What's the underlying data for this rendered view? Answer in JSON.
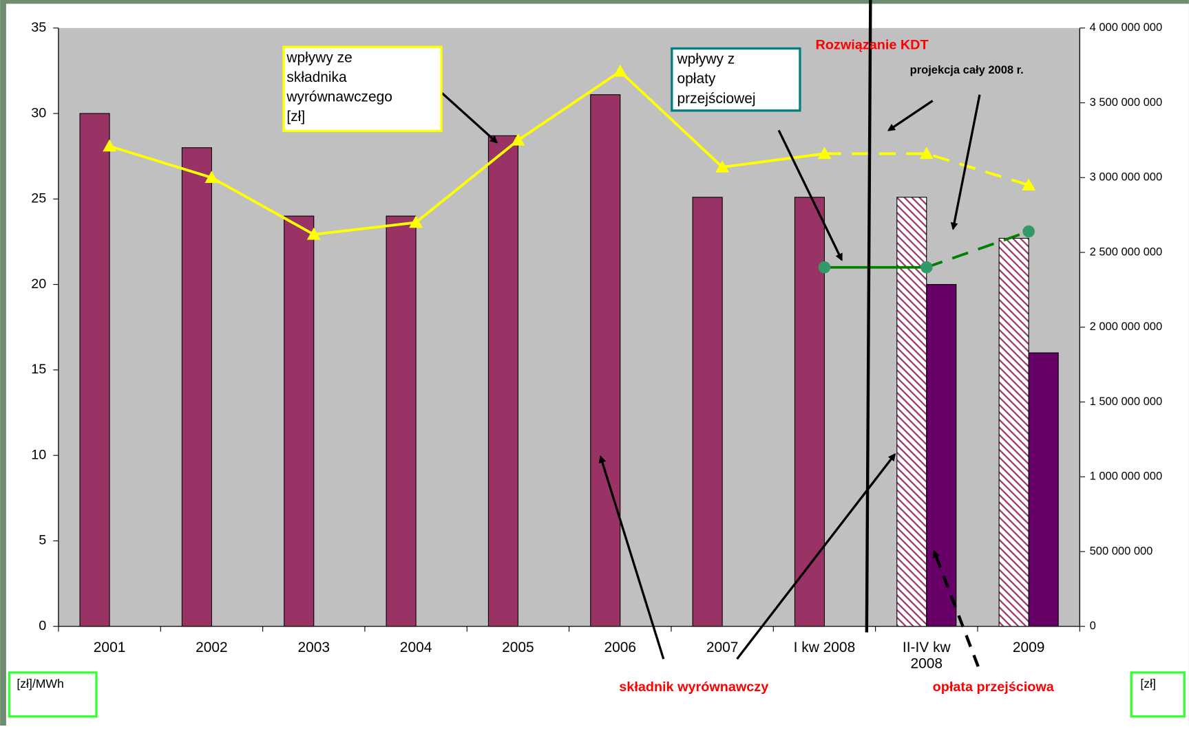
{
  "chart_data": {
    "type": "bar",
    "categories": [
      "2001",
      "2002",
      "2003",
      "2004",
      "2005",
      "2006",
      "2007",
      "I kw 2008",
      "II-IV kw 2008",
      "2009"
    ],
    "series": [
      {
        "name": "składnik wyrównawczy",
        "color": "#993366",
        "kind": "bar",
        "axis": "y",
        "values": [
          30,
          28,
          24,
          24,
          28.7,
          31.1,
          25.1,
          25.1,
          25.1,
          22.7
        ],
        "hatched": [
          false,
          false,
          false,
          false,
          false,
          false,
          false,
          false,
          true,
          true
        ]
      },
      {
        "name": "opłata przejściowa",
        "color": "#660066",
        "kind": "bar",
        "axis": "y",
        "values": [
          null,
          null,
          null,
          null,
          null,
          null,
          null,
          null,
          20,
          16
        ]
      },
      {
        "name": "wpływy ze składnika wyrównawczego [zł]",
        "color": "#ffff00",
        "kind": "line",
        "marker": "triangle",
        "axis": "y2",
        "values": [
          3210000000,
          3000000000,
          2620000000,
          2700000000,
          3250000000,
          3710000000,
          3070000000,
          3160000000,
          3160000000,
          2950000000
        ],
        "dashed_from": 7
      },
      {
        "name": "wpływy z opłaty przejściowej",
        "color": "#008000",
        "marker_color": "#339966",
        "kind": "line",
        "marker": "circle",
        "axis": "y2",
        "values": [
          null,
          null,
          null,
          null,
          null,
          null,
          null,
          2400000000,
          2400000000,
          2640000000
        ],
        "dashed_from": 8
      }
    ],
    "ylim": [
      0,
      35
    ],
    "yticks": [
      0,
      5,
      10,
      15,
      20,
      25,
      30,
      35
    ],
    "y2lim": [
      0,
      4000000000
    ],
    "y2ticks": [
      0,
      {
        "value": 500000000,
        "label": "500 000 000"
      },
      {
        "value": 1000000000,
        "label": "1 000 000 000"
      },
      {
        "value": 1500000000,
        "label": "1 500 000 000"
      },
      {
        "value": 2000000000,
        "label": "2 000 000 000"
      },
      {
        "value": 2500000000,
        "label": "2 500 000 000"
      },
      {
        "value": 3000000000,
        "label": "3 000 000 000"
      },
      {
        "value": 3500000000,
        "label": "3 500 000 000"
      },
      {
        "value": 4000000000,
        "label": "4 000 000 000"
      }
    ],
    "ylabel": "[zł]/MWh",
    "y2label": "[zł]",
    "annotations": [
      "Rozwiązanie KDT",
      "projekcja cały 2008 r."
    ]
  }
}
